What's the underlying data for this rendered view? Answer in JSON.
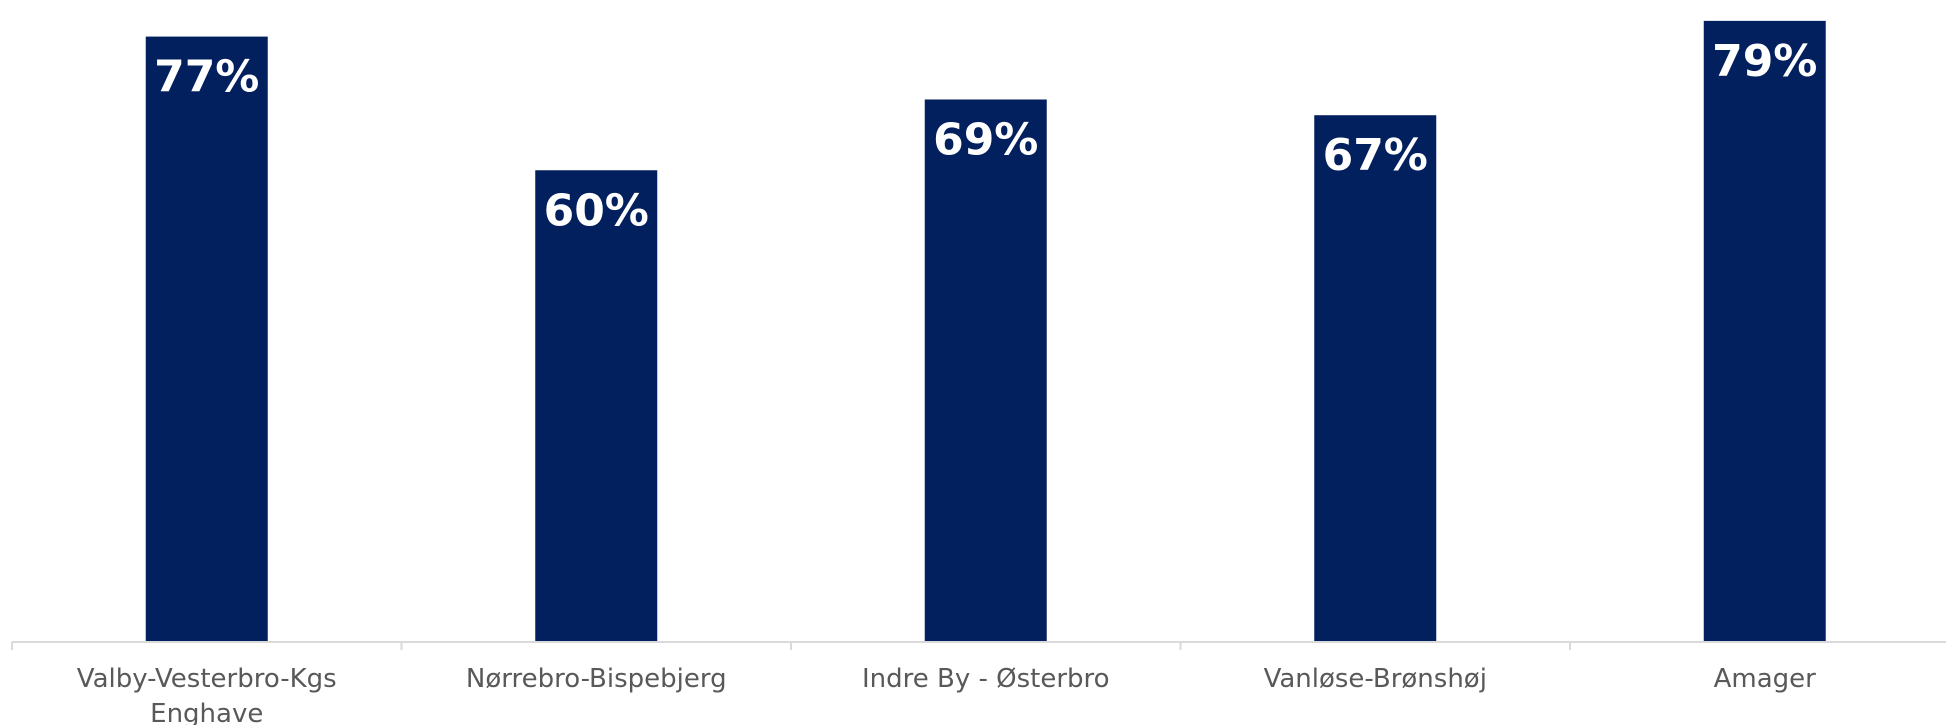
{
  "chart_data": {
    "type": "bar",
    "categories": [
      [
        "Valby-Vesterbro-Kgs",
        "Enghave"
      ],
      [
        "Nørrebro-Bispebjerg"
      ],
      [
        "Indre By - Østerbro"
      ],
      [
        "Vanløse-Brønshøj"
      ],
      [
        "Amager"
      ]
    ],
    "values": [
      77,
      60,
      69,
      67,
      79
    ],
    "value_labels": [
      "77%",
      "60%",
      "69%",
      "67%",
      "79%"
    ],
    "ylim": [
      0,
      80
    ],
    "grid": false,
    "legend": "none",
    "colors": {
      "bar": "#03205e",
      "label": "#ffffff",
      "axis": "#d9d9d9",
      "category_text": "#595959"
    }
  }
}
